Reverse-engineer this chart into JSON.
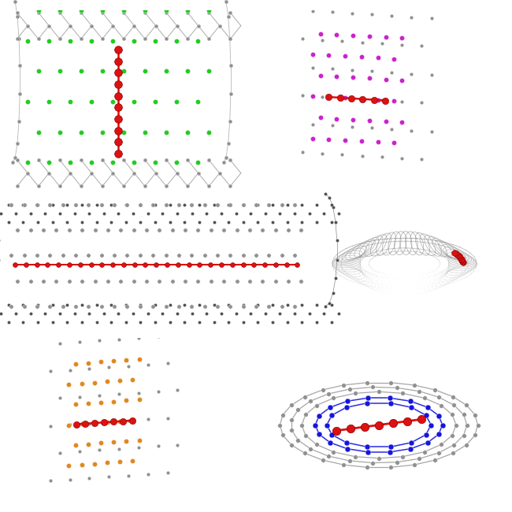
{
  "bg_color": "#ffffff",
  "gray": "#909090",
  "gray_dark": "#505050",
  "gray_light": "#b8b8b8",
  "green": "#22cc22",
  "magenta": "#cc22cc",
  "orange": "#e08820",
  "blue": "#1515dd",
  "red": "#dd1111",
  "figure_size": [
    6.5,
    6.5
  ],
  "dpi": 100
}
